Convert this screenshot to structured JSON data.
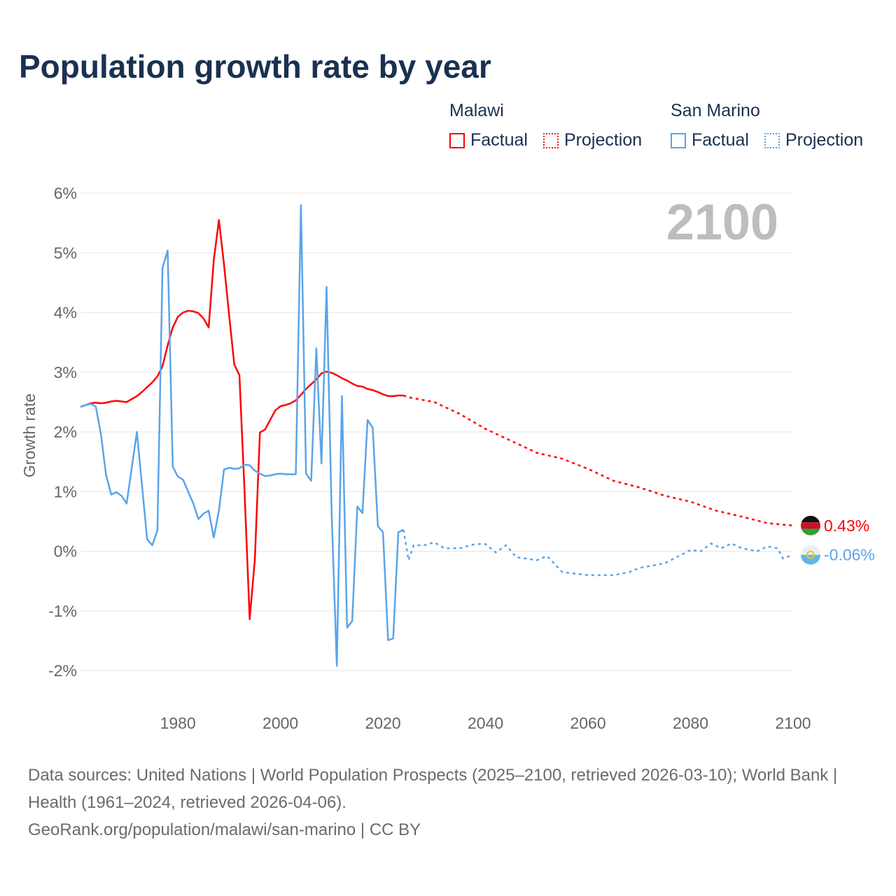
{
  "title": "Population growth rate by year",
  "legend": {
    "groups": [
      {
        "name": "Malawi",
        "color": "#ff0000",
        "factual": "Factual",
        "projection": "Projection"
      },
      {
        "name": "San Marino",
        "color": "#5aa4ea",
        "factual": "Factual",
        "projection": "Projection"
      }
    ]
  },
  "footer": {
    "sources": "Data sources: United Nations | World Population Prospects (2025–2100, retrieved 2026-03-10); World Bank | Health (1961–2024, retrieved 2026-04-06).",
    "link": "GeoRank.org/population/malawi/san-marino | CC BY"
  },
  "chart_data": {
    "type": "line",
    "title": "Population growth rate by year",
    "ylabel": "Growth rate",
    "xlabel": "",
    "year_annotation": "2100",
    "xlim": [
      1961,
      2100
    ],
    "ylim": [
      -2,
      6
    ],
    "x_ticks": [
      1980,
      2000,
      2020,
      2040,
      2060,
      2080,
      2100
    ],
    "y_ticks": [
      {
        "v": 6,
        "label": "6%"
      },
      {
        "v": 5,
        "label": "5%"
      },
      {
        "v": 4,
        "label": "4%"
      },
      {
        "v": 3,
        "label": "3%"
      },
      {
        "v": 2,
        "label": "2%"
      },
      {
        "v": 1,
        "label": "1%"
      },
      {
        "v": 0,
        "label": "0%"
      },
      {
        "v": -1,
        "label": "-1%"
      },
      {
        "v": -2,
        "label": "-2%"
      }
    ],
    "grid": true,
    "series": [
      {
        "name": "Malawi",
        "color": "#ff0000",
        "end_label": "0.43%",
        "factual": {
          "start": 1961,
          "values": [
            2.42,
            2.45,
            2.48,
            2.49,
            2.48,
            2.49,
            2.51,
            2.52,
            2.51,
            2.5,
            2.55,
            2.6,
            2.67,
            2.75,
            2.83,
            2.93,
            3.1,
            3.45,
            3.75,
            3.93,
            4.0,
            4.03,
            4.02,
            3.99,
            3.9,
            3.75,
            4.88,
            5.55,
            4.8,
            3.95,
            3.13,
            2.95,
            1.0,
            -1.14,
            -0.15,
            1.99,
            2.04,
            2.2,
            2.36,
            2.43,
            2.45,
            2.48,
            2.53,
            2.62,
            2.72,
            2.8,
            2.88,
            2.98,
            3.01,
            2.99,
            2.95,
            2.9,
            2.86,
            2.81,
            2.77,
            2.76,
            2.72,
            2.7,
            2.67,
            2.63,
            2.6,
            2.6,
            2.61,
            2.61
          ]
        },
        "projection": [
          [
            2024,
            2.61
          ],
          [
            2025,
            2.58
          ],
          [
            2030,
            2.5
          ],
          [
            2035,
            2.3
          ],
          [
            2040,
            2.05
          ],
          [
            2045,
            1.85
          ],
          [
            2050,
            1.65
          ],
          [
            2055,
            1.55
          ],
          [
            2060,
            1.38
          ],
          [
            2065,
            1.18
          ],
          [
            2070,
            1.07
          ],
          [
            2075,
            0.93
          ],
          [
            2080,
            0.83
          ],
          [
            2085,
            0.68
          ],
          [
            2090,
            0.58
          ],
          [
            2095,
            0.47
          ],
          [
            2100,
            0.43
          ]
        ]
      },
      {
        "name": "San Marino",
        "color": "#5aa4ea",
        "end_label": "-0.06%",
        "factual": {
          "start": 1961,
          "values": [
            2.42,
            2.45,
            2.47,
            2.42,
            1.95,
            1.27,
            0.95,
            0.99,
            0.93,
            0.8,
            1.4,
            2.0,
            1.1,
            0.2,
            0.1,
            0.35,
            4.75,
            5.04,
            1.42,
            1.25,
            1.2,
            1.0,
            0.8,
            0.54,
            0.63,
            0.68,
            0.23,
            0.68,
            1.37,
            1.4,
            1.38,
            1.39,
            1.45,
            1.44,
            1.35,
            1.3,
            1.26,
            1.27,
            1.29,
            1.3,
            1.29,
            1.29,
            1.29,
            5.8,
            1.3,
            1.18,
            3.4,
            1.47,
            4.43,
            0.6,
            -1.92,
            2.6,
            -1.28,
            -1.17,
            0.75,
            0.64,
            2.2,
            2.07,
            0.42,
            0.32,
            -1.49,
            -1.46,
            0.32,
            0.36
          ]
        },
        "projection": [
          [
            2024,
            0.36
          ],
          [
            2025,
            -0.15
          ],
          [
            2026,
            0.1
          ],
          [
            2028,
            0.1
          ],
          [
            2030,
            0.15
          ],
          [
            2032,
            0.05
          ],
          [
            2035,
            0.05
          ],
          [
            2038,
            0.12
          ],
          [
            2040,
            0.12
          ],
          [
            2042,
            -0.02
          ],
          [
            2044,
            0.1
          ],
          [
            2046,
            -0.1
          ],
          [
            2050,
            -0.15
          ],
          [
            2052,
            -0.08
          ],
          [
            2055,
            -0.35
          ],
          [
            2060,
            -0.4
          ],
          [
            2065,
            -0.4
          ],
          [
            2068,
            -0.35
          ],
          [
            2070,
            -0.28
          ],
          [
            2075,
            -0.2
          ],
          [
            2080,
            0.02
          ],
          [
            2082,
            0.0
          ],
          [
            2084,
            0.13
          ],
          [
            2086,
            0.05
          ],
          [
            2088,
            0.13
          ],
          [
            2090,
            0.05
          ],
          [
            2093,
            0.0
          ],
          [
            2095,
            0.08
          ],
          [
            2097,
            0.05
          ],
          [
            2098,
            -0.12
          ],
          [
            2100,
            -0.06
          ]
        ]
      }
    ]
  }
}
